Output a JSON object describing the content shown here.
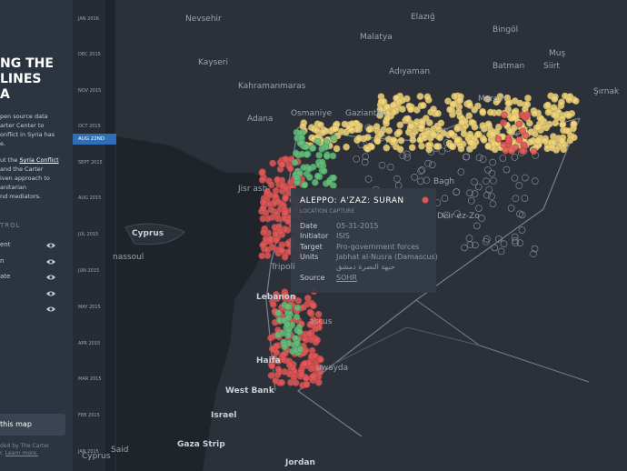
{
  "sidebar": {
    "title": [
      "NG THE",
      "LINES",
      "A"
    ],
    "body": [
      "pen source data",
      "arter Center to",
      "onflict in Syria has",
      "e."
    ],
    "body2": [
      "ut the ",
      "Syria Conflict",
      " and the Carter",
      "iven approach to",
      "anitarian",
      "nd mediators."
    ],
    "control_heading": "TROL",
    "controls": [
      "ent",
      "n",
      "ate",
      "",
      ""
    ],
    "button": "this map",
    "footer": [
      "ded by The Carter",
      "r. ",
      "Learn more."
    ]
  },
  "timeline": {
    "labels": [
      "JAN 2016",
      "DEC 2015",
      "NOV 2015",
      "OCT 2015",
      "SEPT 2015",
      "AUG 2015",
      "JUL 2015",
      "JUN 2015",
      "MAY 2015",
      "APR 2015",
      "MAR 2015",
      "FEB 2015",
      "JAN 2015"
    ],
    "current": "AUG 22ND"
  },
  "map": {
    "labels": [
      "Nevsehir",
      "Elazığ",
      "Bingöl",
      "Malatya",
      "Muş",
      "Kayseri",
      "Adıyaman",
      "Batman",
      "Siirt",
      "Kahramanmaras",
      "Şırnak",
      "Adana",
      "Osmaniye",
      "Gaziantep",
      "Mardin",
      "Cyprus",
      "Jisr ash-",
      "Deir ez-Zo",
      "Tripoli",
      "Lebanon",
      "ascus",
      "Haifa",
      "West Bank",
      "Israel",
      "Gaza Strip",
      "Jordan",
      "uwayda",
      "Cyprus",
      "nassoul",
      "Said",
      "Bagh"
    ]
  },
  "popup": {
    "title": "ALEPPO: A'ZAZ: SURAN",
    "subtitle": "LOCATION CAPTURE",
    "rows": [
      [
        "Date",
        "05-31-2015"
      ],
      [
        "Initiator",
        "ISIS"
      ],
      [
        "Target",
        "Pro-government forces"
      ],
      [
        "Units",
        "Jabhat al-Nusra (Damascus)"
      ],
      [
        "",
        "جبهة النصرة دمشق"
      ],
      [
        "Source",
        "SOHR"
      ]
    ]
  }
}
